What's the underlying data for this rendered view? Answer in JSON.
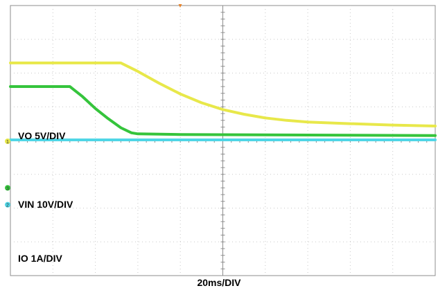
{
  "chart_data": {
    "type": "line",
    "title": "",
    "x_divisions": 10,
    "y_divisions": 8,
    "timebase": "20ms/DIV",
    "grid": true,
    "colors": {
      "frame": "#8c8c8c",
      "grid": "#c8c8c8",
      "vo": "#e8e84a",
      "vin": "#35c43c",
      "io": "#4fd6e6",
      "trigger": "#e8842a"
    },
    "series": [
      {
        "name": "VO 5V/DIV",
        "marker": "1",
        "x": [
          0,
          2.6,
          3,
          3.5,
          4,
          4.5,
          5,
          5.5,
          6,
          6.5,
          7,
          8,
          9,
          10
        ],
        "y": [
          2.3,
          2.3,
          2.05,
          1.7,
          1.38,
          1.12,
          0.92,
          0.78,
          0.67,
          0.6,
          0.55,
          0.5,
          0.46,
          0.43
        ]
      },
      {
        "name": "VIN 10V/DIV",
        "marker": "3",
        "x": [
          0,
          1.4,
          1.7,
          2.0,
          2.3,
          2.6,
          2.85,
          3.0,
          4,
          6,
          8,
          10
        ],
        "y": [
          1.6,
          1.6,
          1.3,
          0.95,
          0.65,
          0.38,
          0.23,
          0.2,
          0.18,
          0.17,
          0.16,
          0.15
        ]
      },
      {
        "name": "IO 1A/DIV",
        "marker": "2",
        "x": [
          0,
          10
        ],
        "y": [
          0.02,
          0.02
        ]
      }
    ]
  }
}
